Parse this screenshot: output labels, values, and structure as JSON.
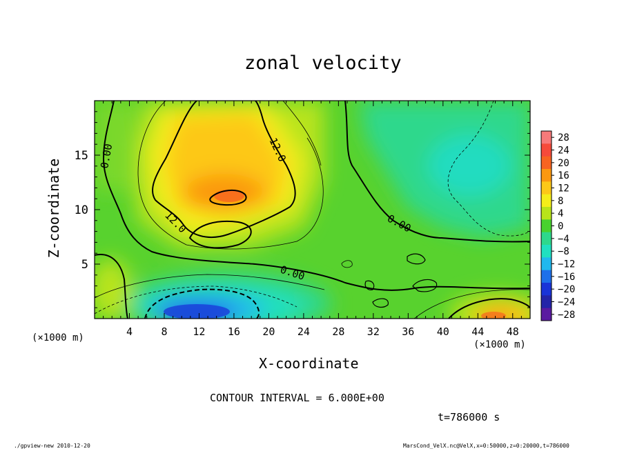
{
  "chart_data": {
    "type": "heatmap",
    "title": "zonal velocity",
    "xlabel": "X-coordinate",
    "ylabel": "Z-coordinate",
    "x_unit": "(×1000 m)",
    "y_unit": "(×1000 m)",
    "xlim": [
      0,
      50
    ],
    "ylim": [
      0,
      20
    ],
    "x_ticks": [
      4,
      8,
      12,
      16,
      20,
      24,
      28,
      32,
      36,
      40,
      44,
      48
    ],
    "y_ticks": [
      5,
      10,
      15
    ],
    "colorbar_levels": [
      28,
      24,
      20,
      16,
      12,
      8,
      4,
      0,
      -4,
      -8,
      -12,
      -16,
      -20,
      -24,
      -28
    ],
    "colorbar_colors": [
      "#f77a7a",
      "#f64a3a",
      "#f86420",
      "#fb9810",
      "#fdc818",
      "#f5ee1a",
      "#b8e41a",
      "#48d22e",
      "#2ed88c",
      "#20e0c0",
      "#20b8ee",
      "#1e70ea",
      "#1a34d8",
      "#2424a8",
      "#5a1aa0"
    ],
    "contour_labels": [
      "0.00",
      "12.0",
      "12.0",
      "0.00",
      "0.00"
    ],
    "contour_interval": "CONTOUR INTERVAL = 6.000E+00",
    "time_label": "t=786000 s",
    "footer_left": "./gpview-new  2010-12-20",
    "footer_right": "MarsCond_VelX.nc@VelX,x=0:50000,z=0:20000,t=786000"
  }
}
